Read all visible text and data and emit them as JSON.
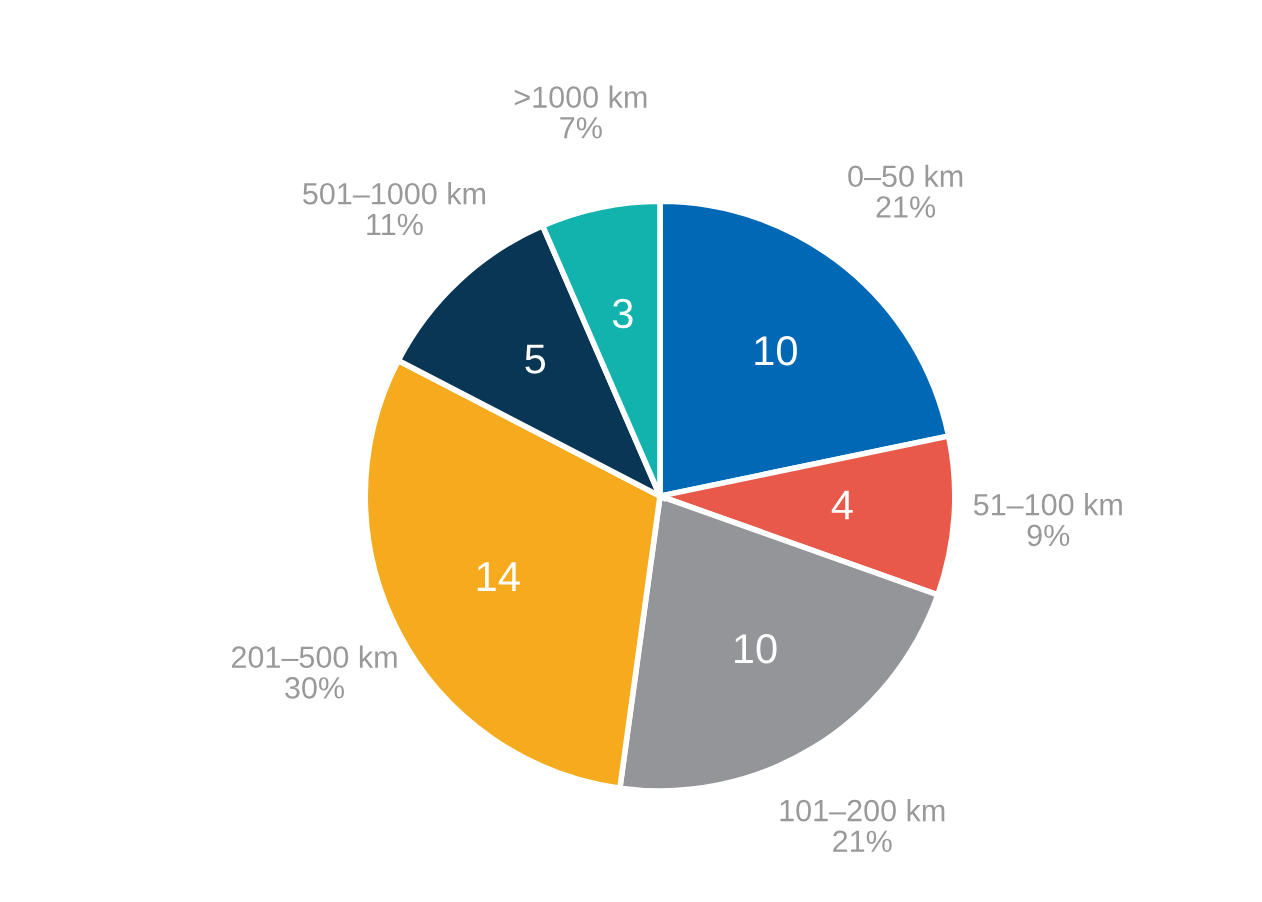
{
  "chart_data": {
    "type": "pie",
    "categories": [
      "0–50 km\n21%",
      "51–100 km\n9%",
      "101–200 km\n21%",
      "201–500 km\n30%",
      "501–1000 km\n11%",
      ">1000 km\n7%"
    ],
    "values": [
      10,
      4,
      10,
      14,
      5,
      3
    ],
    "colors": [
      "#0068b4",
      "#e8594a",
      "#939598",
      "#f6ab1f",
      "#083654",
      "#13b3ad"
    ],
    "data_labels": true
  }
}
